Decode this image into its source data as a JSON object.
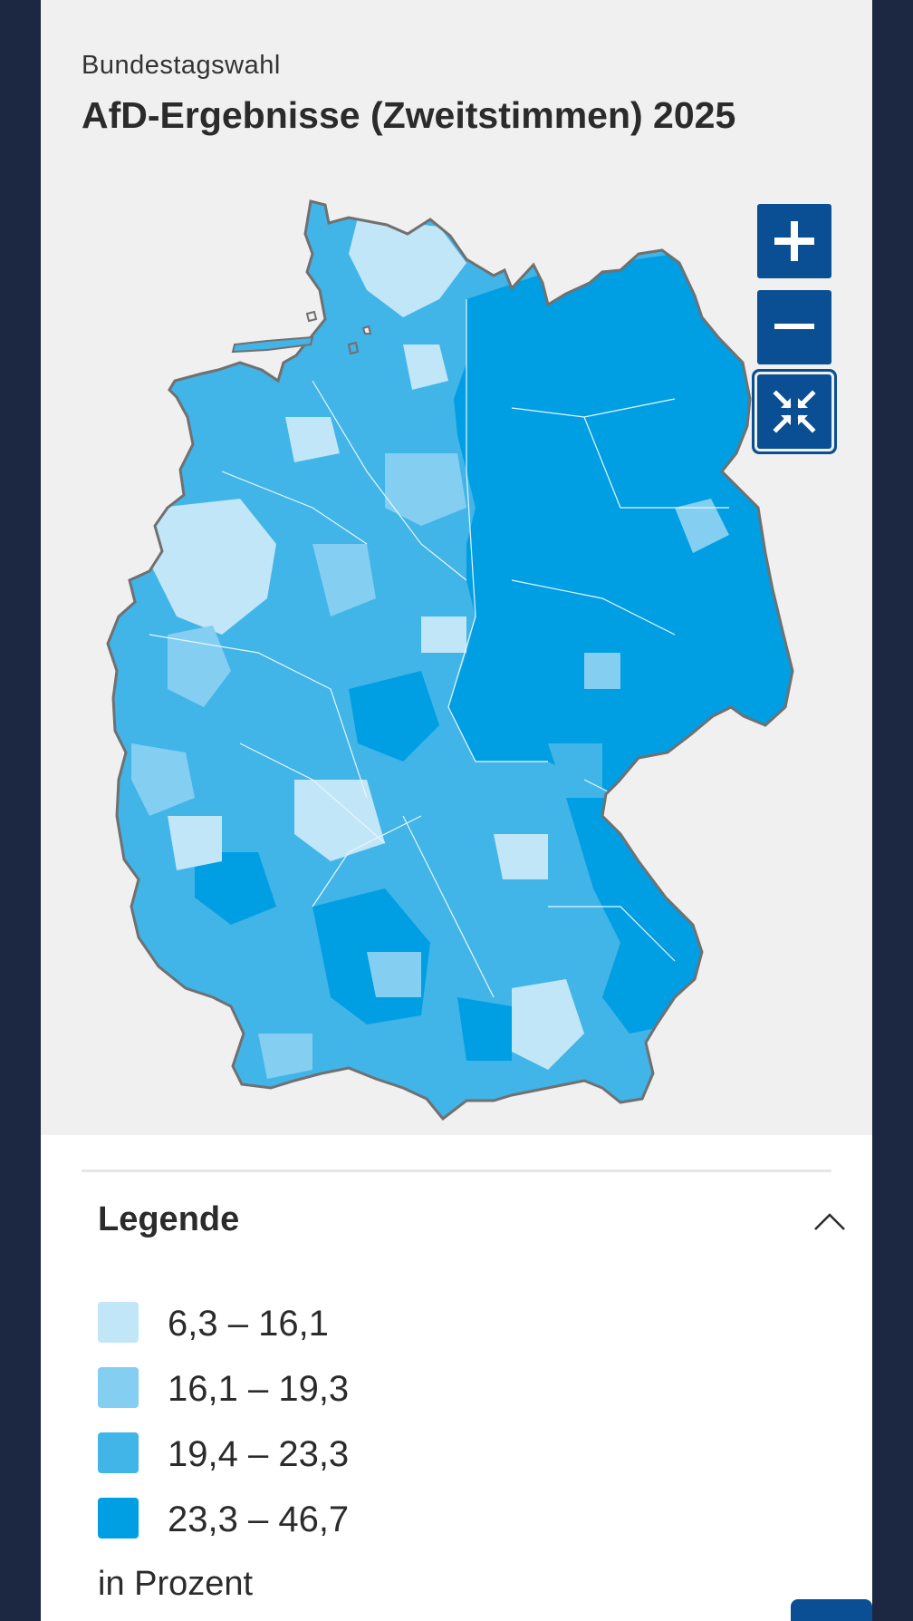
{
  "header": {
    "kicker": "Bundestagswahl",
    "title": "AfD-Ergebnisse (Zweitstimmen) 2025"
  },
  "map": {
    "region": "Deutschland",
    "colors": {
      "class1": "#c1e6f8",
      "class2": "#84cff1",
      "class3": "#41b4e8",
      "class4": "#009fe3",
      "outline": "#707070",
      "control_bg": "#0a4f93"
    },
    "controls": {
      "zoom_in_icon": "plus-icon",
      "zoom_out_icon": "minus-icon",
      "reset_icon": "collapse-arrows-icon"
    }
  },
  "legend": {
    "title": "Legende",
    "toggle_icon": "chevron-up-icon",
    "unit": "in Prozent",
    "items": [
      {
        "label": "6,3 – 16,1",
        "color": "#c1e6f8"
      },
      {
        "label": "16,1 – 19,3",
        "color": "#84cff1"
      },
      {
        "label": "19,4 – 23,3",
        "color": "#41b4e8"
      },
      {
        "label": "23,3 – 46,7",
        "color": "#009fe3"
      }
    ]
  }
}
